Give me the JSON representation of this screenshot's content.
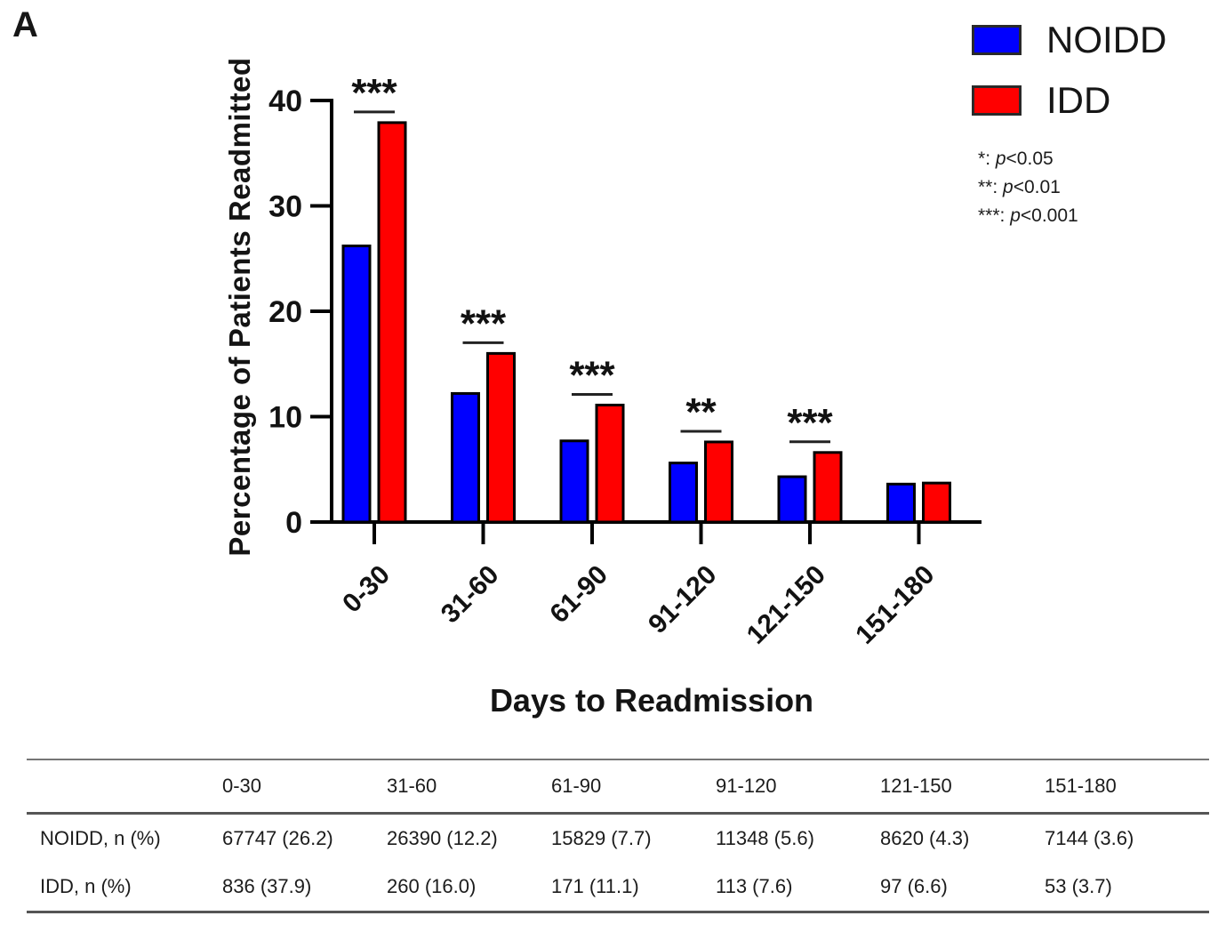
{
  "panel_label": "A",
  "chart_data": {
    "type": "bar",
    "x_axis_title": "Days to Readmission",
    "y_axis_title": "Percentage of Patients Readmitted",
    "categories": [
      "0-30",
      "31-60",
      "61-90",
      "91-120",
      "121-150",
      "151-180"
    ],
    "series": [
      {
        "name": "NOIDD",
        "color": "#0000FF",
        "values": [
          26.2,
          12.2,
          7.7,
          5.6,
          4.3,
          3.6
        ]
      },
      {
        "name": "IDD",
        "color": "#FF0000",
        "values": [
          37.9,
          16.0,
          11.1,
          7.6,
          6.6,
          3.7
        ]
      }
    ],
    "significance_per_category": [
      "***",
      "***",
      "***",
      "**",
      "***",
      ""
    ],
    "y_ticks": [
      0,
      10,
      20,
      30,
      40
    ],
    "ylim": [
      0,
      40
    ],
    "grid": false,
    "legend_position": "top-right"
  },
  "sig_key": {
    "p_symbol": "p",
    "separator": ": ",
    "items": [
      {
        "stars": "*",
        "threshold": "<0.05"
      },
      {
        "stars": "**",
        "threshold": "<0.01"
      },
      {
        "stars": "***",
        "threshold": "<0.001"
      }
    ]
  },
  "table": {
    "columns": [
      "0-30",
      "31-60",
      "61-90",
      "91-120",
      "121-150",
      "151-180"
    ],
    "rows": [
      {
        "label": "NOIDD, n (%)",
        "cells": [
          "67747 (26.2)",
          "26390 (12.2)",
          "15829 (7.7)",
          "11348 (5.6)",
          "8620 (4.3)",
          "7144 (3.6)"
        ]
      },
      {
        "label": "IDD, n (%)",
        "cells": [
          "836 (37.9)",
          "260 (16.0)",
          "171 (11.1)",
          "113 (7.6)",
          "97 (6.6)",
          "53 (3.7)"
        ]
      }
    ]
  }
}
